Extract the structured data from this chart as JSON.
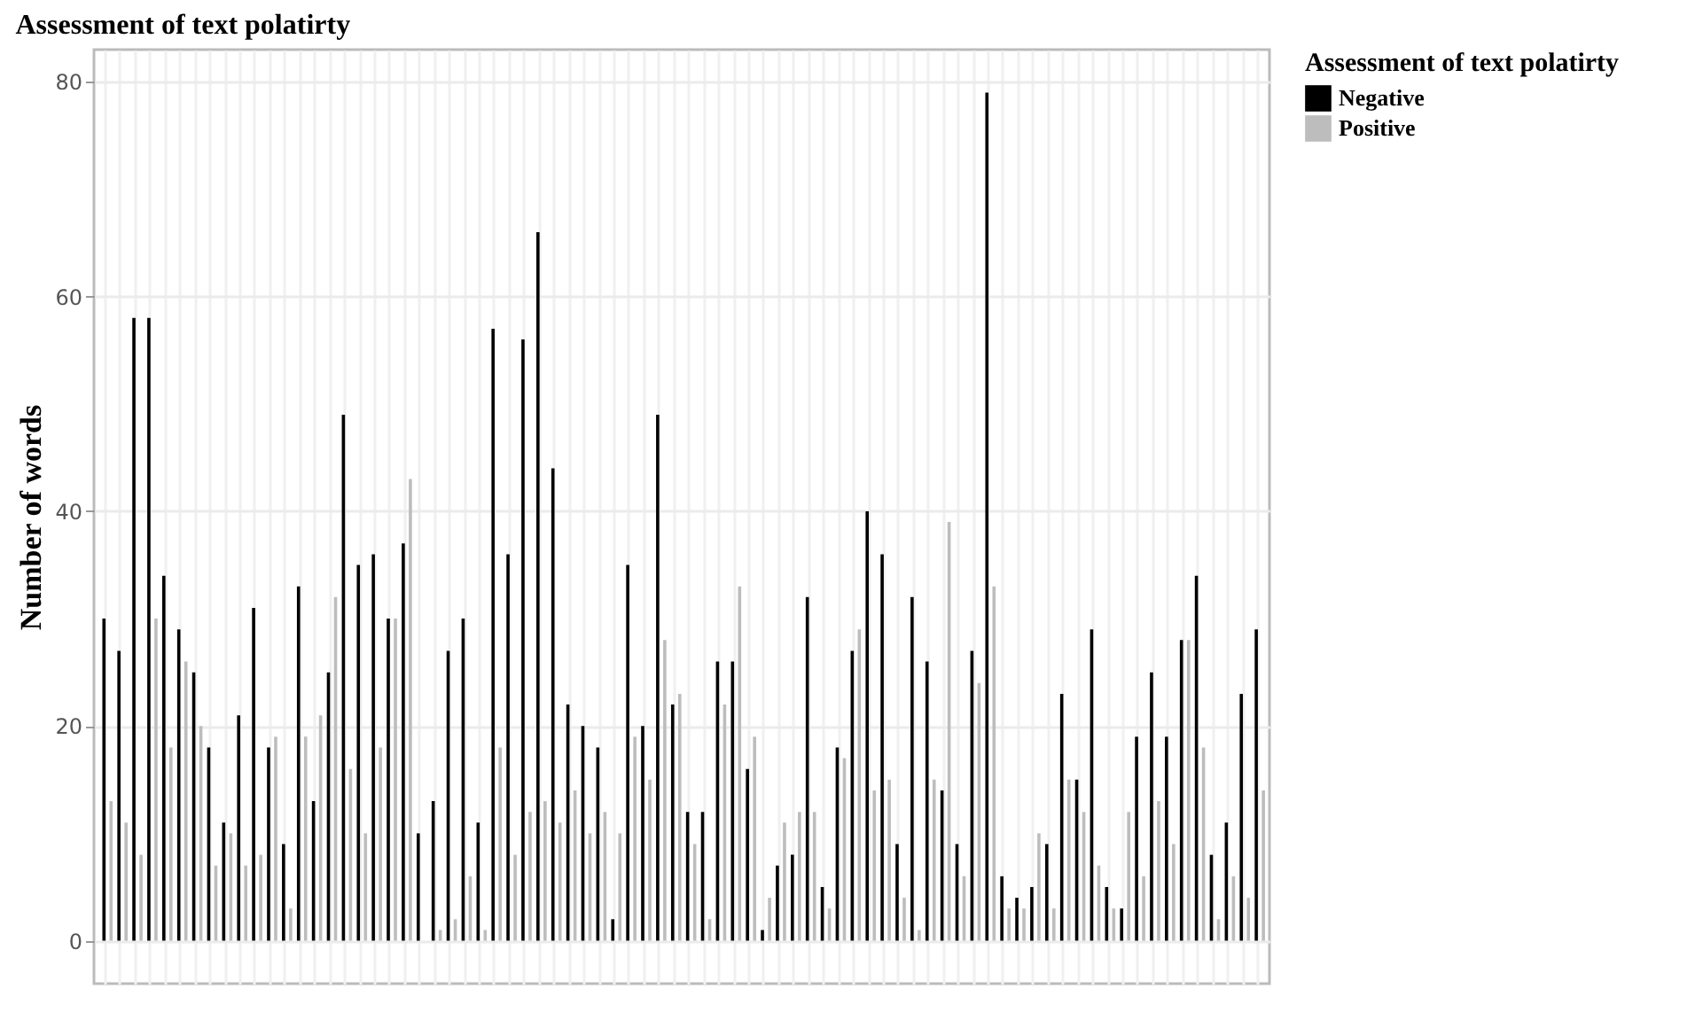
{
  "chart_data": {
    "type": "bar",
    "title": "Assessment of text polatirty",
    "ylabel": "Number of words",
    "legend_title": "Assessment of text polatirty",
    "categories": [
      null,
      null,
      null,
      null,
      null,
      null,
      null,
      null,
      null,
      null,
      null,
      null,
      null,
      null,
      null,
      null,
      null,
      null,
      null,
      null,
      null,
      null,
      null,
      null,
      null,
      null,
      null,
      null,
      null,
      null,
      null,
      null,
      null,
      null,
      null,
      null,
      null,
      null,
      null,
      null,
      null,
      null,
      null,
      null,
      null,
      null,
      null,
      null,
      null,
      null,
      null,
      null,
      null,
      null,
      null,
      null,
      null,
      null,
      null,
      null,
      null,
      null,
      null,
      null,
      null,
      null,
      null,
      null,
      null,
      null,
      null,
      null,
      null,
      null,
      null,
      null,
      null,
      null
    ],
    "series": [
      {
        "name": "Negative",
        "color": "#000000",
        "values": [
          30,
          27,
          58,
          58,
          34,
          29,
          25,
          18,
          11,
          21,
          31,
          18,
          9,
          33,
          13,
          25,
          49,
          35,
          36,
          30,
          37,
          10,
          13,
          27,
          30,
          11,
          57,
          36,
          56,
          66,
          44,
          22,
          20,
          18,
          2,
          35,
          20,
          49,
          22,
          12,
          12,
          26,
          26,
          16,
          1,
          7,
          8,
          32,
          5,
          18,
          27,
          40,
          36,
          9,
          32,
          26,
          14,
          9,
          27,
          79,
          6,
          4,
          5,
          9,
          23,
          15,
          29,
          5,
          3,
          19,
          25,
          19,
          28,
          34,
          8,
          11,
          23,
          29
        ]
      },
      {
        "name": "Positive",
        "color": "#bdbdbd",
        "values": [
          13,
          11,
          8,
          30,
          18,
          26,
          20,
          7,
          10,
          7,
          8,
          19,
          3,
          19,
          21,
          32,
          16,
          10,
          18,
          30,
          43,
          0,
          1,
          2,
          6,
          1,
          18,
          8,
          12,
          13,
          11,
          14,
          10,
          12,
          10,
          19,
          15,
          28,
          23,
          9,
          2,
          22,
          33,
          19,
          4,
          11,
          12,
          12,
          3,
          17,
          29,
          14,
          15,
          4,
          1,
          15,
          39,
          6,
          24,
          33,
          3,
          3,
          10,
          3,
          15,
          12,
          7,
          3,
          12,
          6,
          13,
          9,
          28,
          18,
          2,
          6,
          4,
          14
        ]
      }
    ],
    "ylim": [
      -4,
      83
    ],
    "yticks": [
      0,
      20,
      40,
      60,
      80
    ],
    "grid": true,
    "legend": "right",
    "tick_labels": "y"
  }
}
